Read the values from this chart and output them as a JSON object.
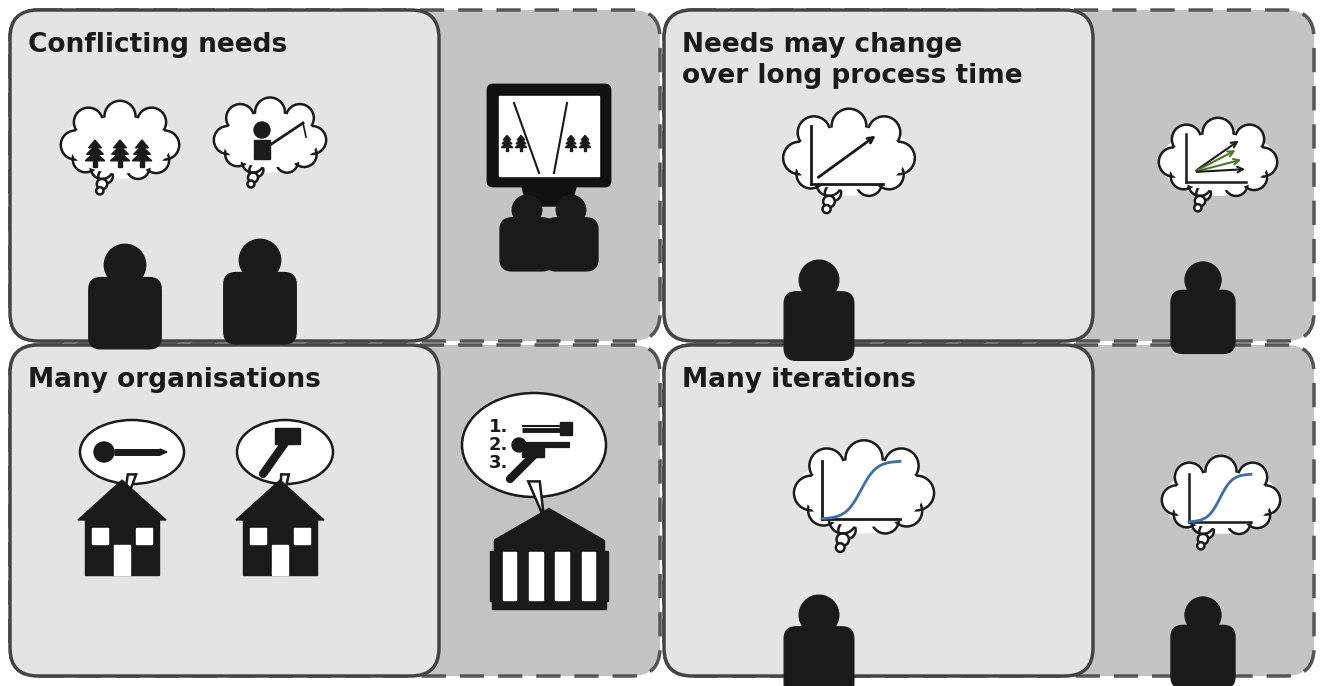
{
  "figure_bg": "#ffffff",
  "panel_light": "#e4e4e4",
  "panel_dark": "#c4c4c4",
  "black": "#1a1a1a",
  "panels": [
    {
      "title": "Conflicting needs",
      "col": 0,
      "row": 0
    },
    {
      "title": "Needs may change\nover long process time",
      "col": 1,
      "row": 0
    },
    {
      "title": "Many organisations",
      "col": 0,
      "row": 1
    },
    {
      "title": "Many iterations",
      "col": 1,
      "row": 1
    }
  ]
}
